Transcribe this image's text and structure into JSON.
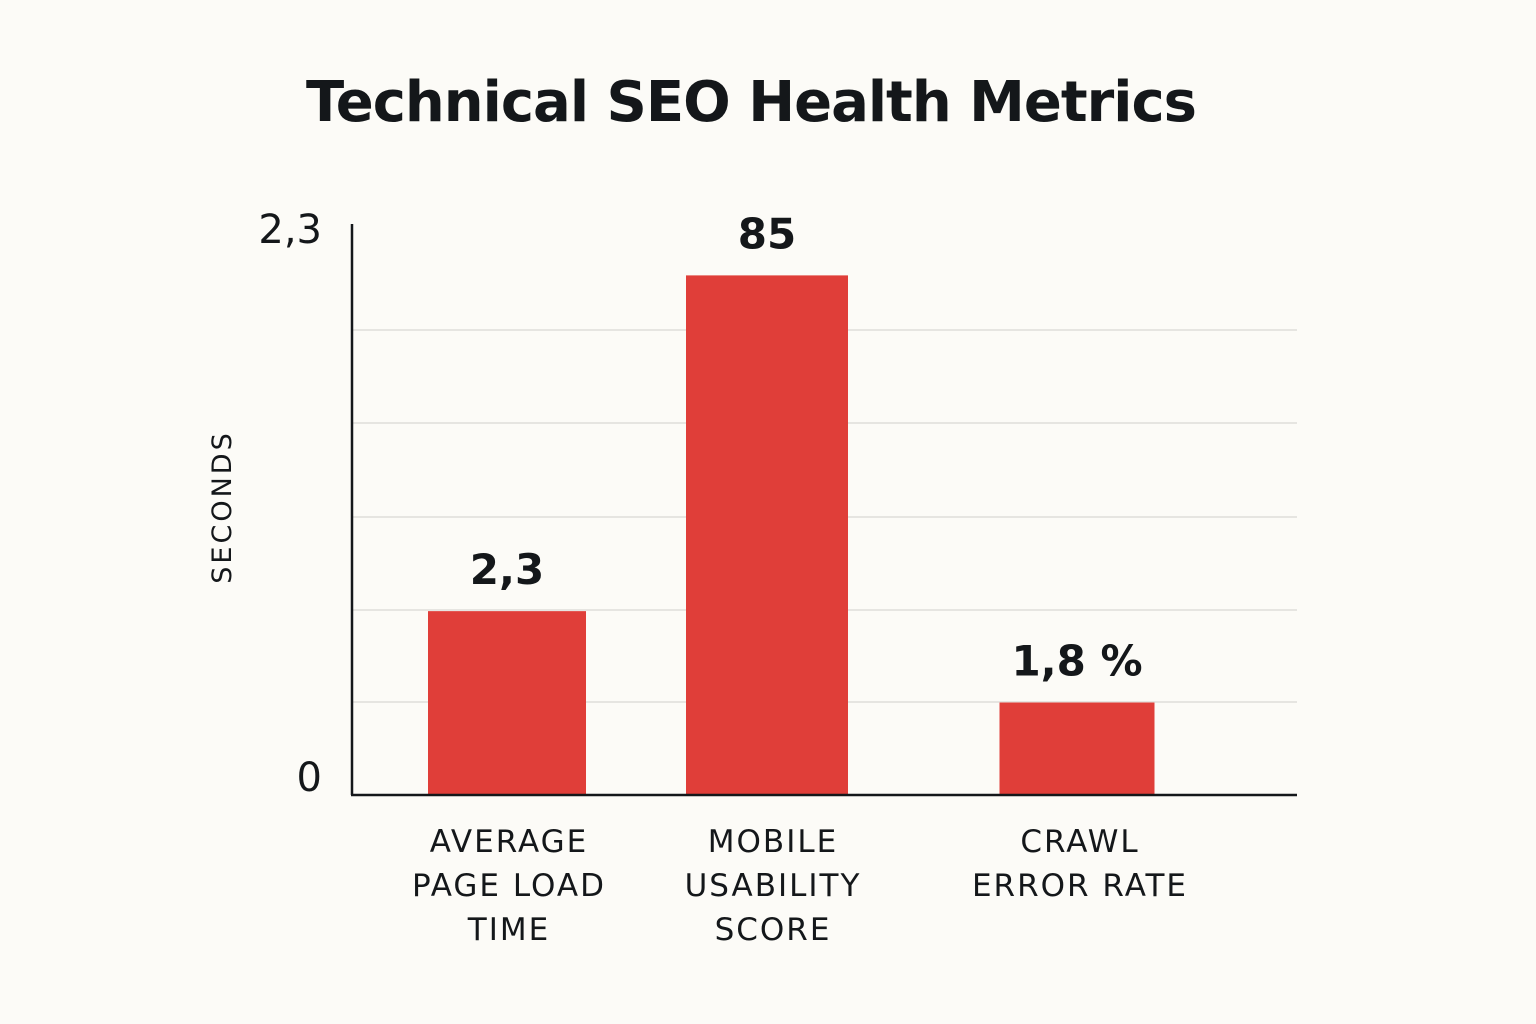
{
  "chart_data": {
    "type": "bar",
    "title": "Technical SEO Health Metrics",
    "ylabel": "SECONDS",
    "xlabel": "",
    "y_ticks": [
      "2,3",
      "0"
    ],
    "categories": [
      [
        "AVERAGE",
        "PAGE LOAD",
        "TIME"
      ],
      [
        "MOBILE",
        "USABILITY",
        "SCORE"
      ],
      [
        "CRAWL",
        "ERROR RATE"
      ]
    ],
    "values": [
      2.3,
      85,
      1.8
    ],
    "value_labels": [
      "2,3",
      "85",
      "1,8 %"
    ],
    "bar_heights_relative": [
      0.322,
      0.91,
      0.162
    ],
    "grid": true,
    "bar_color": "#e03e39",
    "axis_color": "#14171a",
    "grid_color": "#e6e5e1"
  }
}
